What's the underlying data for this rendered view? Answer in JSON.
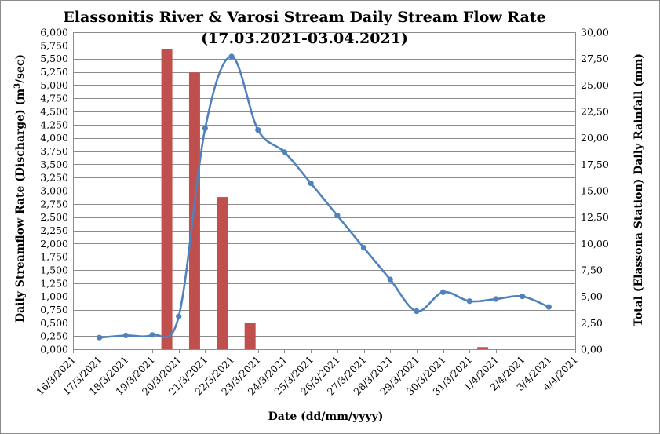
{
  "chart_data": {
    "type": "bar+line",
    "title": "Elassonitis River & Varosi Stream Daily Stream Flow Rate",
    "subtitle": "(17.03.2021-03.04.2021)",
    "xlabel": "Date (dd/mm/yyyy)",
    "ylabel_left_prefix": "Daily Streamflow Rate (Discharge) (m",
    "ylabel_left_sup": "3",
    "ylabel_left_suffix": "/sec)",
    "ylabel_right": "Total (Elassona Station) Daily Rainfall (mm)",
    "categories": [
      "16/3/2021",
      "17/3/2021",
      "18/3/2021",
      "19/3/2021",
      "20/3/2021",
      "21/3/2021",
      "22/3/2021",
      "23/3/2021",
      "24/3/2021",
      "25/3/2021",
      "26/3/2021",
      "27/3/2021",
      "28/3/2021",
      "29/3/2021",
      "30/3/2021",
      "31/3/2021",
      "1/4/2021",
      "2/4/2021",
      "3/4/2021",
      "4/4/2021"
    ],
    "ylim_left": [
      0,
      6
    ],
    "ylim_right": [
      0,
      30
    ],
    "yticks_left": [
      "0,000",
      "0,250",
      "0,500",
      "0,750",
      "1,000",
      "1,250",
      "1,500",
      "1,750",
      "2,000",
      "2,250",
      "2,500",
      "2,750",
      "3,000",
      "3,250",
      "3,500",
      "3,750",
      "4,000",
      "4,250",
      "4,500",
      "4,750",
      "5,000",
      "5,250",
      "5,500",
      "5,750",
      "6,000"
    ],
    "yticks_right": [
      "0,00",
      "2,50",
      "5,00",
      "7,50",
      "10,00",
      "12,50",
      "15,00",
      "17,50",
      "20,00",
      "22,50",
      "25,00",
      "27,50",
      "30,00"
    ],
    "series": [
      {
        "name": "Daily Streamflow Rate",
        "type": "line",
        "axis": "left",
        "color": "#4f81bd",
        "x": [
          1,
          2,
          3,
          4,
          5,
          6,
          7,
          8,
          9,
          10,
          11,
          12,
          13,
          14,
          15,
          16,
          17,
          18
        ],
        "values": [
          0.22,
          0.26,
          0.27,
          0.62,
          4.18,
          5.54,
          4.15,
          3.73,
          3.14,
          2.53,
          1.92,
          1.32,
          0.72,
          1.08,
          0.91,
          0.95,
          1.0,
          0.8
        ]
      },
      {
        "name": "Total Daily Rainfall",
        "type": "bar",
        "axis": "right",
        "color": "#c0504d",
        "x": [
          3.55,
          4.6,
          5.65,
          6.7,
          15.5
        ],
        "values": [
          28.4,
          26.2,
          14.4,
          2.5,
          0.2
        ]
      }
    ],
    "grid": true
  }
}
